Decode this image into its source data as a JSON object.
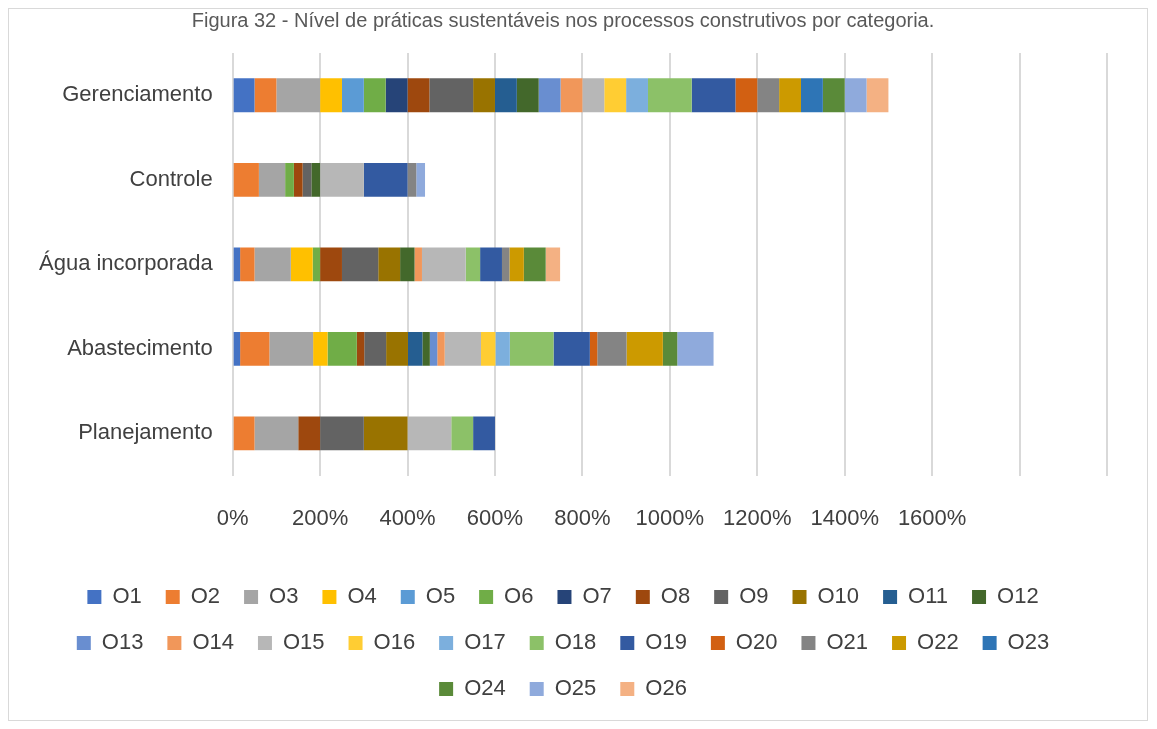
{
  "chart_data": {
    "type": "bar",
    "orientation": "horizontal",
    "stacked": true,
    "title": "Figura 32 - Nível de práticas sustentáveis nos processos construtivos por categoria.",
    "categories": [
      "Gerenciamento",
      "Controle",
      "Água incorporada",
      "Abastecimento",
      "Planejamento"
    ],
    "xlim": [
      0,
      2000
    ],
    "xticks": [
      {
        "value": 0,
        "label": "0%"
      },
      {
        "value": 200,
        "label": "200%"
      },
      {
        "value": 400,
        "label": "400%"
      },
      {
        "value": 600,
        "label": "600%"
      },
      {
        "value": 800,
        "label": "800%"
      },
      {
        "value": 1000,
        "label": "1000%"
      },
      {
        "value": 1200,
        "label": "1200%"
      },
      {
        "value": 1400,
        "label": "1400%"
      },
      {
        "value": 1600,
        "label": "1600%"
      },
      {
        "value": 1800,
        "label": null
      },
      {
        "value": 2000,
        "label": null
      }
    ],
    "grid": "x",
    "legend": "bottom",
    "series": [
      {
        "name": "O1",
        "color": "#4472c4",
        "values": [
          50,
          null,
          17,
          17,
          null
        ]
      },
      {
        "name": "O2",
        "color": "#ed7d31",
        "values": [
          50,
          60,
          33,
          67,
          50
        ]
      },
      {
        "name": "O3",
        "color": "#a5a5a5",
        "values": [
          100,
          60,
          83,
          100,
          100
        ]
      },
      {
        "name": "O4",
        "color": "#ffc000",
        "values": [
          50,
          null,
          50,
          33,
          null
        ]
      },
      {
        "name": "O5",
        "color": "#5b9bd5",
        "values": [
          50,
          null,
          null,
          null,
          null
        ]
      },
      {
        "name": "O6",
        "color": "#70ad47",
        "values": [
          50,
          20,
          17,
          67,
          null
        ]
      },
      {
        "name": "O7",
        "color": "#264478",
        "values": [
          50,
          null,
          null,
          null,
          null
        ]
      },
      {
        "name": "O8",
        "color": "#9e480e",
        "values": [
          50,
          20,
          50,
          17,
          50
        ]
      },
      {
        "name": "O9",
        "color": "#636363",
        "values": [
          100,
          20,
          83,
          50,
          100
        ]
      },
      {
        "name": "O10",
        "color": "#997300",
        "values": [
          50,
          null,
          50,
          50,
          100
        ]
      },
      {
        "name": "O11",
        "color": "#255e91",
        "values": [
          50,
          null,
          null,
          33,
          null
        ]
      },
      {
        "name": "O12",
        "color": "#43682b",
        "values": [
          50,
          20,
          33,
          17,
          null
        ]
      },
      {
        "name": "O13",
        "color": "#698ed0",
        "values": [
          50,
          null,
          null,
          17,
          null
        ]
      },
      {
        "name": "O14",
        "color": "#f1975a",
        "values": [
          50,
          null,
          17,
          17,
          null
        ]
      },
      {
        "name": "O15",
        "color": "#b7b7b7",
        "values": [
          50,
          100,
          100,
          83,
          100
        ]
      },
      {
        "name": "O16",
        "color": "#ffcd33",
        "values": [
          50,
          null,
          null,
          33,
          null
        ]
      },
      {
        "name": "O17",
        "color": "#7cafdd",
        "values": [
          50,
          null,
          null,
          33,
          null
        ]
      },
      {
        "name": "O18",
        "color": "#8cc168",
        "values": [
          100,
          null,
          33,
          100,
          50
        ]
      },
      {
        "name": "O19",
        "color": "#335aa1",
        "values": [
          100,
          100,
          50,
          83,
          50
        ]
      },
      {
        "name": "O20",
        "color": "#d26012",
        "values": [
          50,
          null,
          null,
          17,
          null
        ]
      },
      {
        "name": "O21",
        "color": "#848484",
        "values": [
          50,
          20,
          17,
          67,
          null
        ]
      },
      {
        "name": "O22",
        "color": "#cc9a00",
        "values": [
          50,
          null,
          33,
          83,
          null
        ]
      },
      {
        "name": "O23",
        "color": "#2e75b6",
        "values": [
          50,
          null,
          null,
          null,
          null
        ]
      },
      {
        "name": "O24",
        "color": "#5a8a39",
        "values": [
          50,
          null,
          50,
          33,
          null
        ]
      },
      {
        "name": "O25",
        "color": "#8faadc",
        "values": [
          50,
          20,
          null,
          83,
          null
        ]
      },
      {
        "name": "O26",
        "color": "#f4b183",
        "values": [
          50,
          null,
          33,
          null,
          null
        ]
      }
    ]
  }
}
